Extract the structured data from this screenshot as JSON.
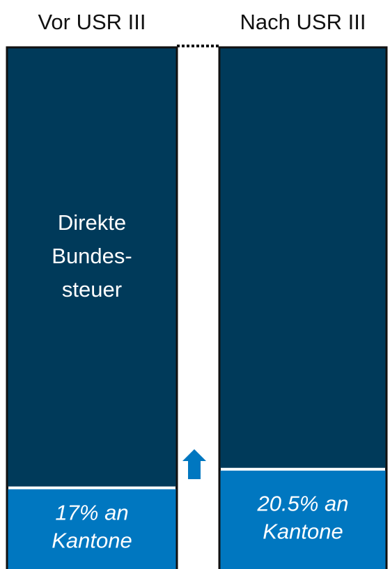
{
  "chart_data": {
    "type": "stacked_bar",
    "categories": [
      "Vor USR III",
      "Nach USR III"
    ],
    "series": [
      {
        "color": "#0077c0",
        "values": [
          17,
          20.5
        ],
        "value_labels": [
          "17% an Kantone",
          "20.5% an Kantone"
        ]
      },
      {
        "name": "Direkte Bundes-steuer",
        "color": "#003a5a",
        "values": [
          83,
          79.5
        ]
      }
    ],
    "ylim": [
      0,
      100
    ]
  }
}
